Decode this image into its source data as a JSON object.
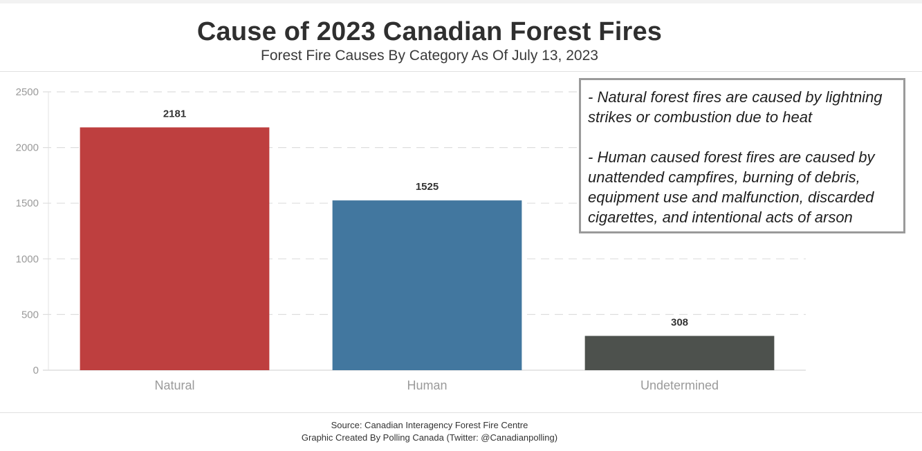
{
  "header": {
    "title": "Cause of 2023 Canadian Forest Fires",
    "subtitle": "Forest Fire Causes By Category As Of July 13, 2023"
  },
  "notes": {
    "natural": "- Natural forest fires are caused by lightning strikes or combustion due to heat",
    "human": "- Human caused forest fires are caused by unattended campfires, burning of debris, equipment use and malfunction, discarded cigarettes, and intentional acts of arson"
  },
  "footer": {
    "source": "Source: Canadian Interagency Forest Fire Centre",
    "credit": "Graphic Created By Polling Canada (Twitter: @Canadianpolling)"
  },
  "chart_data": {
    "type": "bar",
    "title": "Cause of 2023 Canadian Forest Fires",
    "subtitle": "Forest Fire Causes By Category As Of July 13, 2023",
    "xlabel": "",
    "ylabel": "",
    "categories": [
      "Natural",
      "Human",
      "Undetermined"
    ],
    "values": [
      2181,
      1525,
      308
    ],
    "colors": [
      "#be3f3f",
      "#42779f",
      "#4d514d"
    ],
    "ylim": [
      0,
      2500
    ],
    "yticks": [
      0,
      500,
      1000,
      1500,
      2000,
      2500
    ],
    "grid": true,
    "gridline_style": "dashed",
    "data_labels": true,
    "legend": "none"
  }
}
